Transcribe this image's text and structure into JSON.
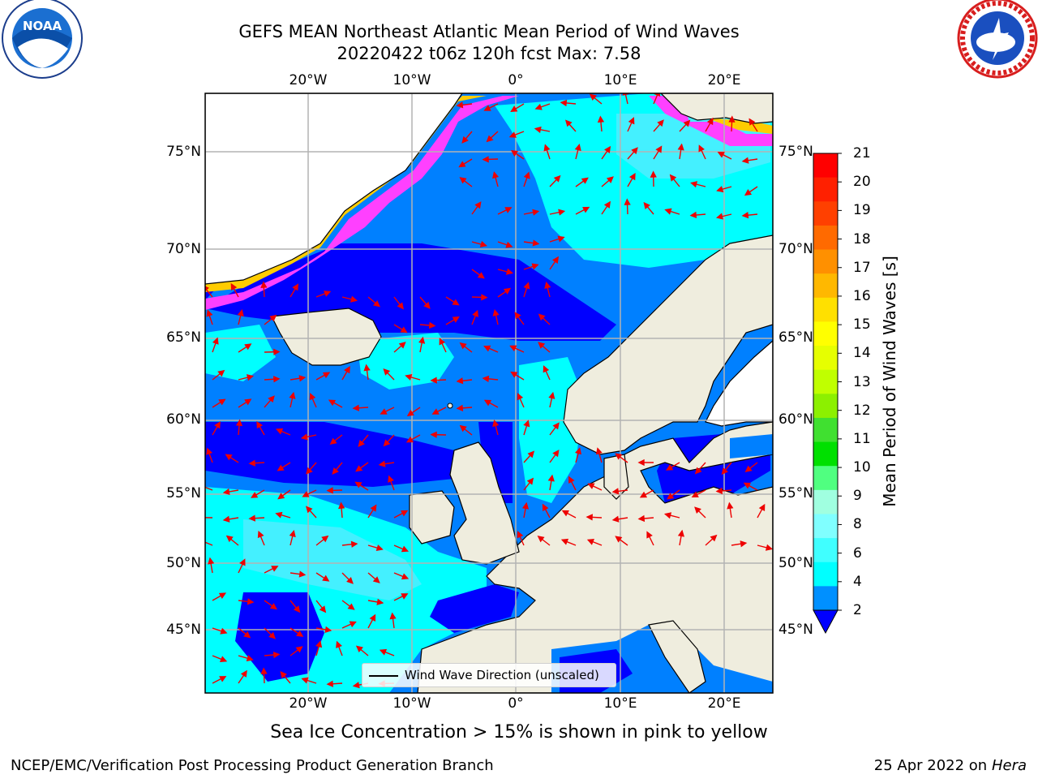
{
  "title": {
    "line1": "GEFS MEAN Northeast Atlantic Mean Period of Wind Waves",
    "line2": "20220422 t06z 120h fcst   Max: 7.58"
  },
  "logos": {
    "left": {
      "icon": "noaa-logo-icon",
      "text": "NOAA"
    },
    "right": {
      "icon": "national-weather-service-logo-icon",
      "text": "NATIONAL WEATHER SERVICE"
    }
  },
  "axes": {
    "lon_labels": [
      "20°W",
      "10°W",
      "0°",
      "10°E",
      "20°E"
    ],
    "lat_labels": [
      "75°N",
      "70°N",
      "65°N",
      "60°N",
      "55°N",
      "50°N",
      "45°N"
    ]
  },
  "colorbar": {
    "label": "Mean Period of Wind Waves [s]",
    "ticks": [
      "21",
      "20",
      "19",
      "18",
      "17",
      "16",
      "15",
      "14",
      "13",
      "12",
      "11",
      "10",
      "9",
      "8",
      "6",
      "4",
      "2"
    ],
    "colors": [
      "#ff0000",
      "#ff2000",
      "#ff4000",
      "#ff6a00",
      "#ff9000",
      "#ffb800",
      "#ffe000",
      "#ffff00",
      "#e6ff00",
      "#c0ff00",
      "#8cf000",
      "#40e030",
      "#00e000",
      "#50ff80",
      "#a0ffe0",
      "#80ffff",
      "#40ffff",
      "#00ffff",
      "#0090ff"
    ],
    "extend_color": "#0000ff"
  },
  "map_colors": {
    "land": "#efedde",
    "ocean_2_4": "#0080ff",
    "ocean_0_2": "#0000ff",
    "ocean_4_6": "#00ffff",
    "ocean_6_8": "#44f0ff",
    "ice_pink": "#ff40ff",
    "ice_yellow": "#ffee00",
    "arrow": "#ee0000"
  },
  "legend": {
    "label": "Wind Wave Direction (unscaled)"
  },
  "caption": "Sea Ice Concentration > 15% is shown in pink to yellow",
  "footer": {
    "credit": "NCEP/EMC/Verification Post Processing Product Generation Branch",
    "date": "25 Apr 2022 on",
    "host": "Hera"
  }
}
